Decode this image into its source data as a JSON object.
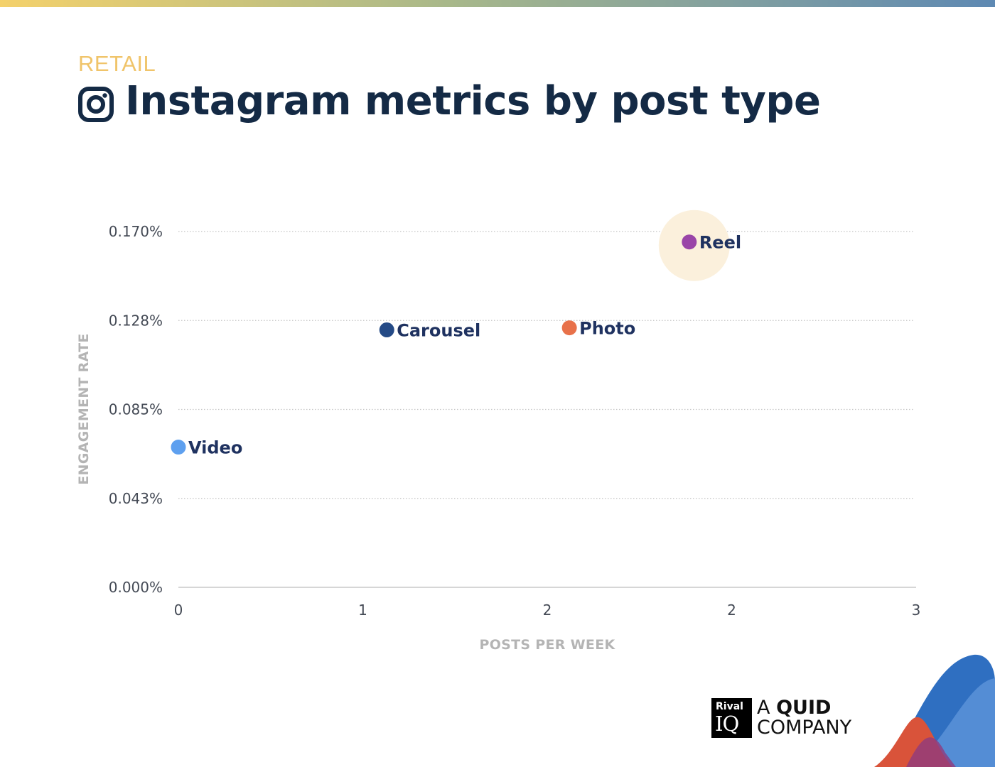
{
  "header": {
    "eyebrow": "RETAIL",
    "title": "Instagram metrics by post type",
    "icon": "instagram-icon"
  },
  "brand": {
    "logo_top": "Rival",
    "logo_bottom": "IQ",
    "tagline_a": "A ",
    "tagline_b": "QUID",
    "tagline_c": "COMPANY"
  },
  "colors": {
    "title": "#142a45",
    "eyebrow": "#f0c46a",
    "highlight": "#fbf0dc",
    "video": "#5ea0ef",
    "carousel": "#244a86",
    "photo": "#e8714a",
    "reel": "#9a45a8"
  },
  "chart_data": {
    "type": "scatter",
    "xlabel": "POSTS PER WEEK",
    "ylabel": "ENGAGEMENT RATE",
    "xlim": [
      0,
      4
    ],
    "ylim": [
      0,
      0.17
    ],
    "x_ticks": [
      "0",
      "1",
      "2",
      "2",
      "3"
    ],
    "y_ticks": [
      "0.000%",
      "0.043%",
      "0.085%",
      "0.128%",
      "0.170%"
    ],
    "grid": true,
    "points": [
      {
        "label": "Video",
        "x": 0.0,
        "y": 0.067,
        "color": "#5ea0ef"
      },
      {
        "label": "Carousel",
        "x": 1.13,
        "y": 0.123,
        "color": "#244a86"
      },
      {
        "label": "Photo",
        "x": 2.12,
        "y": 0.124,
        "color": "#e8714a"
      },
      {
        "label": "Reel",
        "x": 2.77,
        "y": 0.165,
        "color": "#9a45a8",
        "highlighted": true
      }
    ]
  }
}
